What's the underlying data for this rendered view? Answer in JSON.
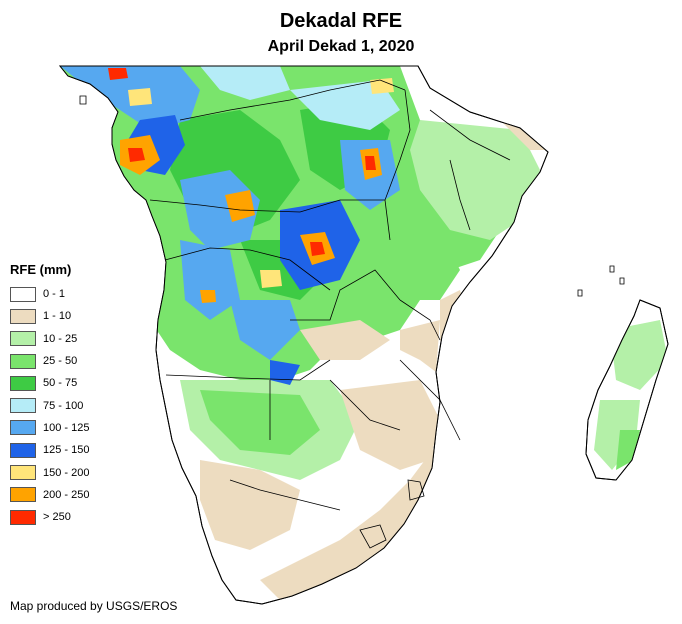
{
  "title": "Dekadal RFE",
  "subtitle": "April Dekad 1, 2020",
  "legend": {
    "title": "RFE (mm)",
    "items": [
      {
        "label": "0 - 1",
        "color": "#ffffff"
      },
      {
        "label": "1 - 10",
        "color": "#eddcc0"
      },
      {
        "label": "10 - 25",
        "color": "#b4f0a8"
      },
      {
        "label": "25 - 50",
        "color": "#7ae46c"
      },
      {
        "label": "50 - 75",
        "color": "#3ecb44"
      },
      {
        "label": "75 - 100",
        "color": "#b5ecf7"
      },
      {
        "label": "100 - 125",
        "color": "#56a8f0"
      },
      {
        "label": "125 - 150",
        "color": "#1f63e8"
      },
      {
        "label": "150 - 200",
        "color": "#ffe57a"
      },
      {
        "label": "200 - 250",
        "color": "#ffa300"
      },
      {
        "label": "> 250",
        "color": "#ff2a00"
      }
    ]
  },
  "credit": "Map produced by USGS/EROS"
}
